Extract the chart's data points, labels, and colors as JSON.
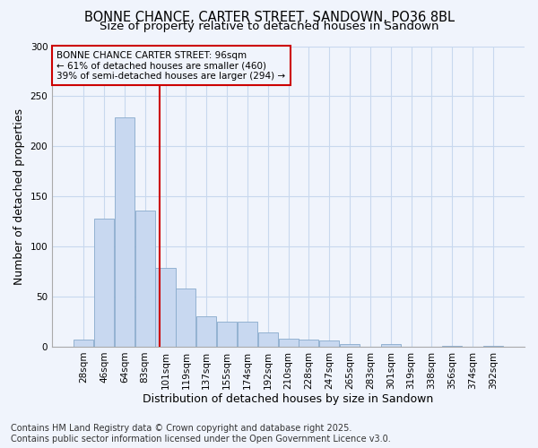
{
  "title": "BONNE CHANCE, CARTER STREET, SANDOWN, PO36 8BL",
  "subtitle": "Size of property relative to detached houses in Sandown",
  "xlabel": "Distribution of detached houses by size in Sandown",
  "ylabel": "Number of detached properties",
  "categories": [
    "28sqm",
    "46sqm",
    "64sqm",
    "83sqm",
    "101sqm",
    "119sqm",
    "137sqm",
    "155sqm",
    "174sqm",
    "192sqm",
    "210sqm",
    "228sqm",
    "247sqm",
    "265sqm",
    "283sqm",
    "301sqm",
    "319sqm",
    "338sqm",
    "356sqm",
    "374sqm",
    "392sqm"
  ],
  "values": [
    7,
    128,
    229,
    136,
    79,
    58,
    30,
    25,
    25,
    14,
    8,
    7,
    6,
    3,
    0,
    3,
    0,
    0,
    1,
    0,
    1
  ],
  "bar_color": "#c8d8f0",
  "bar_edge_color": "#88aacc",
  "vline_color": "#cc0000",
  "annotation_title": "BONNE CHANCE CARTER STREET: 96sqm",
  "annotation_line1": "← 61% of detached houses are smaller (460)",
  "annotation_line2": "39% of semi-detached houses are larger (294) →",
  "annotation_box_color": "#cc0000",
  "ylim": [
    0,
    300
  ],
  "yticks": [
    0,
    50,
    100,
    150,
    200,
    250,
    300
  ],
  "footer_line1": "Contains HM Land Registry data © Crown copyright and database right 2025.",
  "footer_line2": "Contains public sector information licensed under the Open Government Licence v3.0.",
  "bg_color": "#f0f4fc",
  "plot_bg_color": "#f0f4fc",
  "grid_color": "#c8d8ee",
  "title_fontsize": 10.5,
  "subtitle_fontsize": 9.5,
  "axis_label_fontsize": 9,
  "tick_fontsize": 7.5,
  "footer_fontsize": 7,
  "annotation_fontsize": 7.5,
  "vline_x_index": 3.72
}
